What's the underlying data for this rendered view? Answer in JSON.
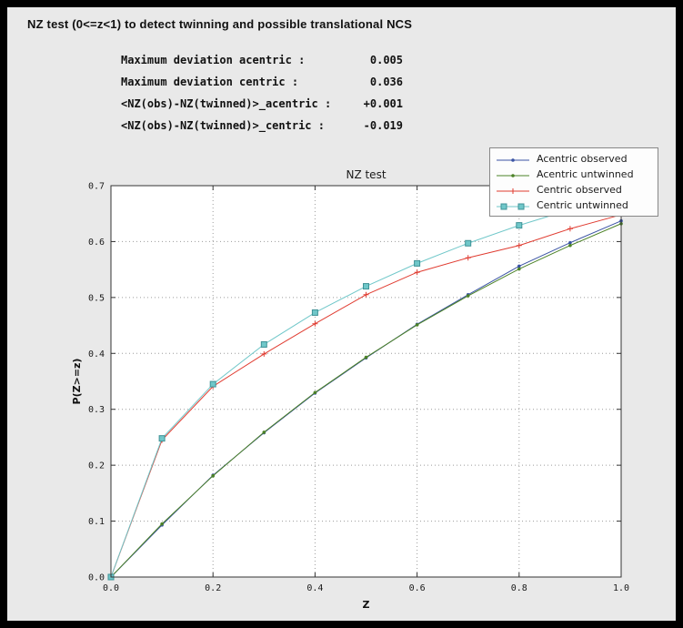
{
  "header": {
    "title": "NZ test (0<=z<1) to detect twinning and possible translational NCS"
  },
  "stats": {
    "rows": [
      {
        "label": "Maximum deviation acentric :",
        "value": "0.005"
      },
      {
        "label": "Maximum deviation centric :",
        "value": "0.036"
      },
      {
        "label": "<NZ(obs)-NZ(twinned)>_acentric :",
        "value": "+0.001"
      },
      {
        "label": "<NZ(obs)-NZ(twinned)>_centric :",
        "value": "-0.019"
      }
    ]
  },
  "chart_data": {
    "type": "line",
    "title": "NZ test",
    "xlabel": "Z",
    "ylabel": "P(Z>=z)",
    "xlim": [
      0.0,
      1.0
    ],
    "ylim": [
      0.0,
      0.7
    ],
    "xticks": [
      0.0,
      0.2,
      0.4,
      0.6,
      0.8,
      1.0
    ],
    "yticks": [
      0.0,
      0.1,
      0.2,
      0.3,
      0.4,
      0.5,
      0.6,
      0.7
    ],
    "grid": true,
    "legend_position": "top-right",
    "x": [
      0.0,
      0.1,
      0.2,
      0.3,
      0.4,
      0.5,
      0.6,
      0.7,
      0.8,
      0.9,
      1.0
    ],
    "series": [
      {
        "name": "Acentric observed",
        "color": "#3a53a4",
        "marker": "dot",
        "values": [
          0.0,
          0.093,
          0.182,
          0.258,
          0.329,
          0.392,
          0.452,
          0.505,
          0.556,
          0.598,
          0.637
        ]
      },
      {
        "name": "Acentric untwinned",
        "color": "#4c8227",
        "marker": "dot",
        "values": [
          0.0,
          0.095,
          0.181,
          0.259,
          0.33,
          0.393,
          0.451,
          0.503,
          0.551,
          0.593,
          0.632
        ]
      },
      {
        "name": "Centric observed",
        "color": "#e03b30",
        "marker": "plus",
        "values": [
          0.0,
          0.245,
          0.341,
          0.399,
          0.453,
          0.505,
          0.545,
          0.571,
          0.593,
          0.623,
          0.648
        ]
      },
      {
        "name": "Centric untwinned",
        "color": "#6fc7c9",
        "marker": "square",
        "marker_edge": "#3f9296",
        "values": [
          0.0,
          0.248,
          0.345,
          0.416,
          0.473,
          0.52,
          0.561,
          0.597,
          0.629,
          0.657,
          0.683
        ]
      }
    ]
  }
}
